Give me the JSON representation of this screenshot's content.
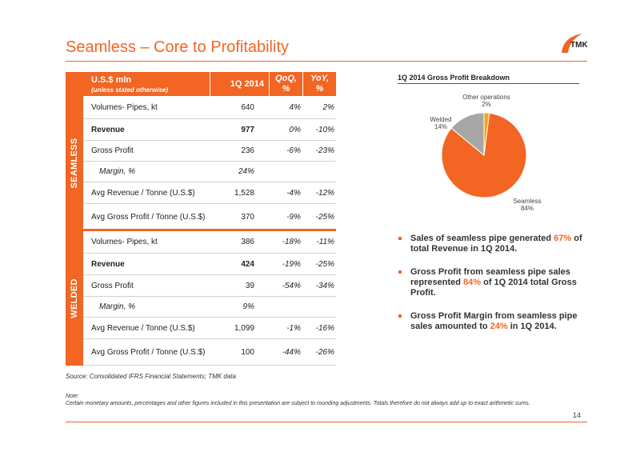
{
  "title": "Seamless – Core to Profitability",
  "logo": "TMK",
  "table": {
    "header": {
      "col1": "U.S.$ mln",
      "col1_sub": "(unless stated otherwise)",
      "col2": "1Q 2014",
      "col3_a": "QoQ,",
      "col3_b": "%",
      "col4_a": "YoY,",
      "col4_b": "%"
    },
    "seamless": {
      "label": "SEAMLESS",
      "rows": [
        {
          "label": "Volumes- Pipes, kt",
          "v1": "640",
          "v2": "4%",
          "v3": "2%"
        },
        {
          "label": "Revenue",
          "v1": "977",
          "v2": "0%",
          "v3": "-10%"
        },
        {
          "label": "Gross Profit",
          "v1": "236",
          "v2": "-6%",
          "v3": "-23%"
        },
        {
          "label": "Margin, %",
          "v1": "24%",
          "v2": "",
          "v3": ""
        },
        {
          "label": "Avg Revenue / Tonne (U.S.$)",
          "v1": "1,528",
          "v2": "-4%",
          "v3": "-12%"
        },
        {
          "label": "Avg Gross Profit / Tonne (U.S.$)",
          "v1": "370",
          "v2": "-9%",
          "v3": "-25%"
        }
      ]
    },
    "welded": {
      "label": "WELDED",
      "rows": [
        {
          "label": "Volumes- Pipes, kt",
          "v1": "386",
          "v2": "-18%",
          "v3": "-11%"
        },
        {
          "label": "Revenue",
          "v1": "424",
          "v2": "-19%",
          "v3": "-25%"
        },
        {
          "label": "Gross Profit",
          "v1": "39",
          "v2": "-54%",
          "v3": "-34%"
        },
        {
          "label": "Margin, %",
          "v1": "9%",
          "v2": "",
          "v3": ""
        },
        {
          "label": "Avg Revenue / Tonne (U.S.$)",
          "v1": "1,099",
          "v2": "-1%",
          "v3": "-16%"
        },
        {
          "label": "Avg Gross Profit / Tonne (U.S.$)",
          "v1": "100",
          "v2": "-44%",
          "v3": "-26%"
        }
      ]
    }
  },
  "source": "Source: Consolidated IFRS Financial Statements; TMK data",
  "note_label": "Note:",
  "note_text": "Certain monetary amounts, percentages and other figures included in this presentation are subject to rounding adjustments. Totals therefore do not always add up to exact arithmetic sums.",
  "page_number": "14",
  "chart_data": {
    "type": "pie",
    "title": "1Q 2014 Gross Profit Breakdown",
    "slices": [
      {
        "name": "Seamless",
        "value": 84,
        "label": "84%",
        "color": "#f26522"
      },
      {
        "name": "Welded",
        "value": 14,
        "label": "14%",
        "color": "#a6a6a6"
      },
      {
        "name": "Other operations",
        "value": 2,
        "label": "2%",
        "color": "#f7a21b"
      }
    ]
  },
  "bullets": [
    {
      "pre": "Sales of seamless pipe generated ",
      "hl": "67%",
      "post": " of total Revenue in 1Q 2014."
    },
    {
      "pre": "Gross Profit from seamless pipe sales represented ",
      "hl": "84%",
      "post": " of 1Q 2014 total Gross Profit."
    },
    {
      "pre": "Gross Profit Margin from seamless pipe sales amounted to ",
      "hl": "24%",
      "post": " in 1Q 2014."
    }
  ],
  "colors": {
    "accent": "#f26522",
    "welded": "#a6a6a6",
    "other": "#f7a21b"
  }
}
